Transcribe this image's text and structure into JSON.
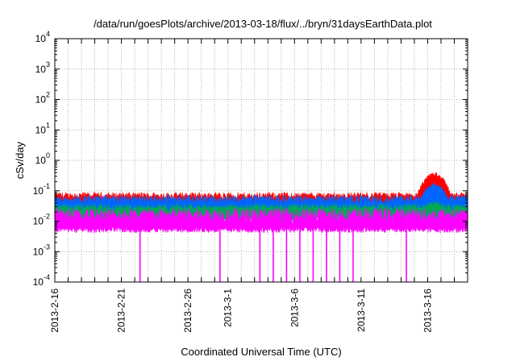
{
  "chart_data": {
    "type": "line",
    "title": "/data/run/goesPlots/archive/2013-03-18/flux/../bryn/31daysEarthData.plot",
    "xlabel": "Coordinated Universal Time (UTC)",
    "ylabel": "cSv/day",
    "yscale": "log",
    "ylim": [
      0.0001,
      10000
    ],
    "xlim": [
      "2013-02-16",
      "2013-03-19"
    ],
    "grid": true,
    "y_ticks": [
      {
        "value": 0.0001,
        "base": "10",
        "exp": "-4"
      },
      {
        "value": 0.001,
        "base": "10",
        "exp": "-3"
      },
      {
        "value": 0.01,
        "base": "10",
        "exp": "-2"
      },
      {
        "value": 0.1,
        "base": "10",
        "exp": "-1"
      },
      {
        "value": 1,
        "base": "10",
        "exp": "0"
      },
      {
        "value": 10,
        "base": "10",
        "exp": "1"
      },
      {
        "value": 100,
        "base": "10",
        "exp": "2"
      },
      {
        "value": 1000,
        "base": "10",
        "exp": "3"
      },
      {
        "value": 10000,
        "base": "10",
        "exp": "4"
      }
    ],
    "x_ticks": [
      "2013-2-16",
      "2013-2-21",
      "2013-2-26",
      "2013-3-1",
      "2013-3-6",
      "2013-3-11",
      "2013-3-16"
    ],
    "series": [
      {
        "color": "#ff0000",
        "baseline": 0.06,
        "spread": 0.25,
        "dropouts": [],
        "event": {
          "center": "2013-03-16",
          "width_days": 1.0,
          "peak": 0.35
        }
      },
      {
        "color": "#0066ff",
        "baseline": 0.045,
        "spread": 0.3,
        "dropouts": [],
        "event": {
          "center": "2013-03-16",
          "width_days": 1.0,
          "peak": 0.15
        }
      },
      {
        "color": "#00aa55",
        "baseline": 0.025,
        "spread": 0.25,
        "dropouts": [],
        "event": {
          "center": "2013-03-16",
          "width_days": 1.0,
          "peak": 0.04
        }
      },
      {
        "color": "#ff00ff",
        "baseline": 0.012,
        "spread": 0.5,
        "event": null,
        "dropouts": [
          "2013-02-22",
          "2013-02-28",
          "2013-03-03",
          "2013-03-04",
          "2013-03-05",
          "2013-03-06",
          "2013-03-07",
          "2013-03-08",
          "2013-03-09",
          "2013-03-10",
          "2013-03-14"
        ]
      }
    ]
  }
}
